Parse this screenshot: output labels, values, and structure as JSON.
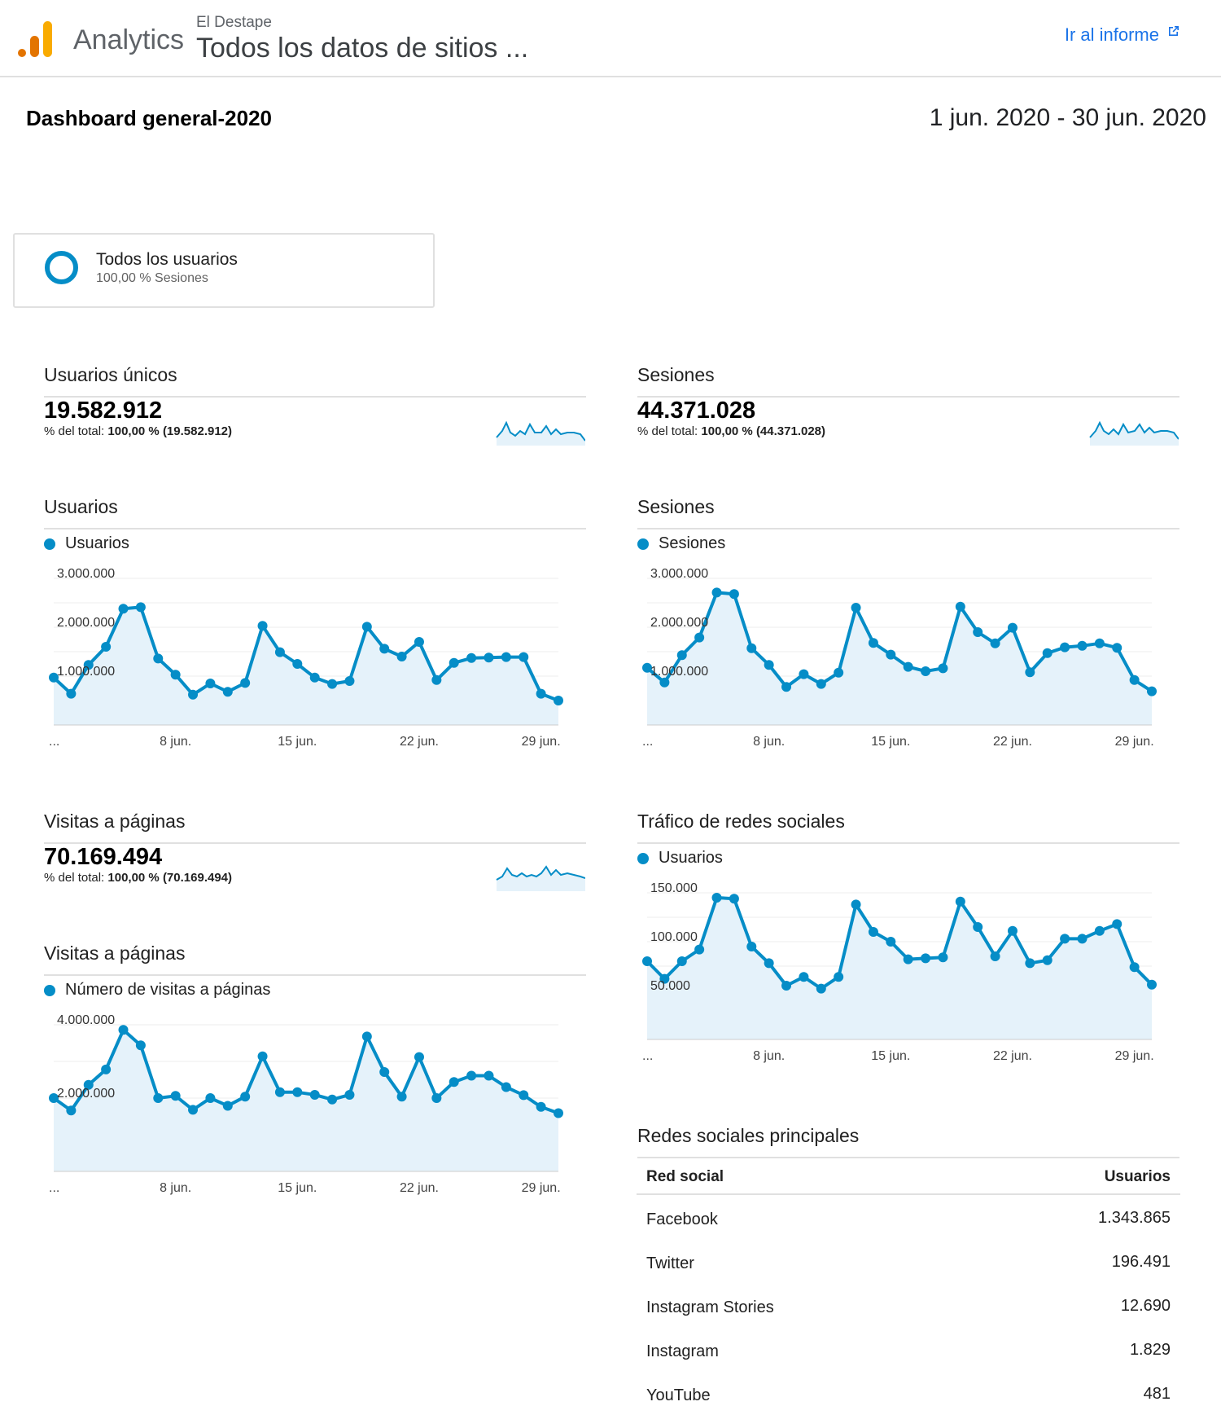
{
  "header": {
    "product": "Analytics",
    "account": "El Destape",
    "view": "Todos los datos de sitios ...",
    "report_link": "Ir al informe",
    "report_icon": "external-link-icon"
  },
  "dashboard": {
    "title": "Dashboard general-2020",
    "date_range": "1 jun. 2020 - 30 jun. 2020"
  },
  "segment": {
    "name": "Todos los usuarios",
    "sub": "100,00 % Sesiones"
  },
  "colors": {
    "accent": "#058dc7",
    "area": "#e5f2fa",
    "link": "#1a73e8"
  },
  "widgets": {
    "unique_users": {
      "title": "Usuarios únicos",
      "value": "19.582.912",
      "pct_label": "% del total:",
      "pct_value": "100,00 % (19.582.912)"
    },
    "sessions_total": {
      "title": "Sesiones",
      "value": "44.371.028",
      "pct_label": "% del total:",
      "pct_value": "100,00 % (44.371.028)"
    },
    "pageviews_total": {
      "title": "Visitas a páginas",
      "value": "70.169.494",
      "pct_label": "% del total:",
      "pct_value": "100,00 % (70.169.494)"
    },
    "users_chart": {
      "title": "Usuarios",
      "legend": "Usuarios"
    },
    "sessions_chart": {
      "title": "Sesiones",
      "legend": "Sesiones"
    },
    "pageviews_chart": {
      "title": "Visitas a páginas",
      "legend": "Número de visitas a páginas"
    },
    "social_chart": {
      "title": "Tráfico de redes sociales",
      "legend": "Usuarios"
    },
    "social_table": {
      "title": "Redes sociales principales",
      "col_left": "Red social",
      "col_right": "Usuarios",
      "rows": [
        {
          "name": "Facebook",
          "value": "1.343.865"
        },
        {
          "name": "Twitter",
          "value": "196.491"
        },
        {
          "name": "Instagram Stories",
          "value": "12.690"
        },
        {
          "name": "Instagram",
          "value": "1.829"
        },
        {
          "name": "YouTube",
          "value": "481"
        }
      ]
    }
  },
  "chart_data": [
    {
      "id": "usuarios",
      "type": "area",
      "x_ticks": [
        "...",
        "8 jun.",
        "15 jun.",
        "22 jun.",
        "29 jun."
      ],
      "x_tick_days": [
        1,
        8,
        15,
        22,
        29
      ],
      "y_ticks": [
        1000000,
        2000000,
        3000000
      ],
      "y_tick_labels": [
        "1.000.000",
        "2.000.000",
        "3.000.000"
      ],
      "ylim": [
        0,
        3000000
      ],
      "grid": true,
      "series": [
        {
          "name": "Usuarios",
          "x": [
            1,
            2,
            3,
            4,
            5,
            6,
            7,
            8,
            9,
            10,
            11,
            12,
            13,
            14,
            15,
            16,
            17,
            18,
            19,
            20,
            21,
            22,
            23,
            24,
            25,
            26,
            27,
            28,
            29,
            30
          ],
          "values": [
            970000,
            640000,
            1230000,
            1600000,
            2380000,
            2410000,
            1360000,
            1030000,
            620000,
            850000,
            680000,
            860000,
            2030000,
            1490000,
            1250000,
            970000,
            840000,
            900000,
            2010000,
            1560000,
            1400000,
            1700000,
            920000,
            1270000,
            1370000,
            1380000,
            1390000,
            1390000,
            640000,
            500000
          ]
        }
      ]
    },
    {
      "id": "sesiones",
      "type": "area",
      "x_ticks": [
        "...",
        "8 jun.",
        "15 jun.",
        "22 jun.",
        "29 jun."
      ],
      "x_tick_days": [
        1,
        8,
        15,
        22,
        29
      ],
      "y_ticks": [
        1000000,
        2000000,
        3000000
      ],
      "y_tick_labels": [
        "1.000.000",
        "2.000.000",
        "3.000.000"
      ],
      "ylim": [
        0,
        3000000
      ],
      "grid": true,
      "series": [
        {
          "name": "Sesiones",
          "x": [
            1,
            2,
            3,
            4,
            5,
            6,
            7,
            8,
            9,
            10,
            11,
            12,
            13,
            14,
            15,
            16,
            17,
            18,
            19,
            20,
            21,
            22,
            23,
            24,
            25,
            26,
            27,
            28,
            29,
            30
          ],
          "values": [
            1170000,
            870000,
            1430000,
            1790000,
            2710000,
            2680000,
            1570000,
            1230000,
            780000,
            1040000,
            840000,
            1070000,
            2400000,
            1680000,
            1440000,
            1190000,
            1100000,
            1160000,
            2420000,
            1900000,
            1670000,
            1990000,
            1080000,
            1470000,
            1590000,
            1620000,
            1670000,
            1580000,
            920000,
            690000
          ]
        }
      ]
    },
    {
      "id": "visitas",
      "type": "area",
      "x_ticks": [
        "...",
        "8 jun.",
        "15 jun.",
        "22 jun.",
        "29 jun."
      ],
      "x_tick_days": [
        1,
        8,
        15,
        22,
        29
      ],
      "y_ticks": [
        2000000,
        4000000
      ],
      "y_tick_labels": [
        "2.000.000",
        "4.000.000"
      ],
      "ylim": [
        0,
        4000000
      ],
      "grid": true,
      "series": [
        {
          "name": "Número de visitas a páginas",
          "x": [
            1,
            2,
            3,
            4,
            5,
            6,
            7,
            8,
            9,
            10,
            11,
            12,
            13,
            14,
            15,
            16,
            17,
            18,
            19,
            20,
            21,
            22,
            23,
            24,
            25,
            26,
            27,
            28,
            29,
            30
          ],
          "values": [
            2000000,
            1660000,
            2360000,
            2780000,
            3860000,
            3440000,
            2000000,
            2060000,
            1680000,
            2000000,
            1790000,
            2040000,
            3140000,
            2160000,
            2160000,
            2090000,
            1960000,
            2090000,
            3680000,
            2710000,
            2040000,
            3120000,
            2000000,
            2440000,
            2610000,
            2610000,
            2300000,
            2080000,
            1760000,
            1590000
          ]
        }
      ]
    },
    {
      "id": "redes",
      "type": "area",
      "x_ticks": [
        "...",
        "8 jun.",
        "15 jun.",
        "22 jun.",
        "29 jun."
      ],
      "x_tick_days": [
        1,
        8,
        15,
        22,
        29
      ],
      "y_ticks": [
        50000,
        100000,
        150000
      ],
      "y_tick_labels": [
        "50.000",
        "100.000",
        "150.000"
      ],
      "ylim": [
        0,
        150000
      ],
      "grid": true,
      "series": [
        {
          "name": "Usuarios",
          "x": [
            1,
            2,
            3,
            4,
            5,
            6,
            7,
            8,
            9,
            10,
            11,
            12,
            13,
            14,
            15,
            16,
            17,
            18,
            19,
            20,
            21,
            22,
            23,
            24,
            25,
            26,
            27,
            28,
            29,
            30
          ],
          "values": [
            80000,
            62000,
            80000,
            92000,
            145000,
            144000,
            95000,
            78000,
            55000,
            64000,
            52000,
            64000,
            138000,
            110000,
            100000,
            82000,
            83000,
            84000,
            141000,
            115000,
            85000,
            111000,
            78000,
            81000,
            103000,
            103000,
            111000,
            118000,
            74000,
            56000
          ]
        }
      ]
    }
  ]
}
